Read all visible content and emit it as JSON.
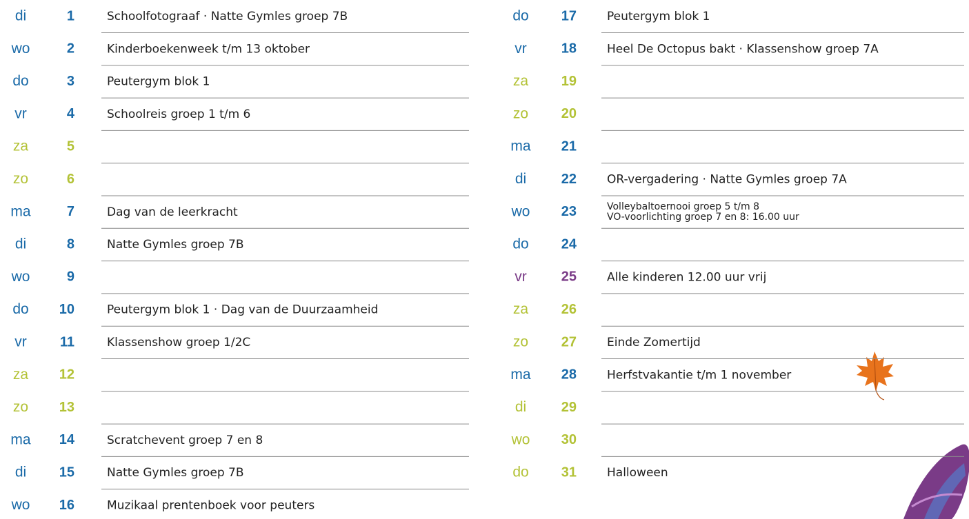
{
  "columns": [
    {
      "rows": [
        {
          "weekday": "di",
          "day": 1,
          "color": "#1a6aa8",
          "event": "Schoolfotograaf · Natte Gymles groep 7B"
        },
        {
          "weekday": "wo",
          "day": 2,
          "color": "#1a6aa8",
          "event": "Kinderboekenweek t/m 13 oktober"
        },
        {
          "weekday": "do",
          "day": 3,
          "color": "#1a6aa8",
          "event": "Peutergym blok 1"
        },
        {
          "weekday": "vr",
          "day": 4,
          "color": "#1a6aa8",
          "event": "Schoolreis groep 1 t/m 6"
        },
        {
          "weekday": "za",
          "day": 5,
          "color": "#b3c236"
        },
        {
          "weekday": "zo",
          "day": 6,
          "color": "#b3c236"
        },
        {
          "weekday": "ma",
          "day": 7,
          "color": "#1a6aa8",
          "event": "Dag van de leerkracht"
        },
        {
          "weekday": "di",
          "day": 8,
          "color": "#1a6aa8",
          "event": "Natte Gymles groep 7B"
        },
        {
          "weekday": "wo",
          "day": 9,
          "color": "#1a6aa8"
        },
        {
          "weekday": "do",
          "day": 10,
          "color": "#1a6aa8",
          "event": "Peutergym blok 1 · Dag van de Duurzaamheid"
        },
        {
          "weekday": "vr",
          "day": 11,
          "color": "#1a6aa8",
          "event": "Klassenshow groep 1/2C"
        },
        {
          "weekday": "za",
          "day": 12,
          "color": "#b3c236"
        },
        {
          "weekday": "zo",
          "day": 13,
          "color": "#b3c236"
        },
        {
          "weekday": "ma",
          "day": 14,
          "color": "#1a6aa8",
          "event": "Scratchevent groep 7 en 8"
        },
        {
          "weekday": "di",
          "day": 15,
          "color": "#1a6aa8",
          "event": "Natte Gymles groep 7B"
        },
        {
          "weekday": "wo",
          "day": 16,
          "color": "#1a6aa8",
          "event": "Muzikaal prentenboek voor peuters"
        }
      ]
    },
    {
      "rows": [
        {
          "weekday": "do",
          "day": 17,
          "color": "#1a6aa8",
          "event": "Peutergym blok 1"
        },
        {
          "weekday": "vr",
          "day": 18,
          "color": "#1a6aa8",
          "event": "Heel De Octopus bakt · Klassenshow groep 7A"
        },
        {
          "weekday": "za",
          "day": 19,
          "color": "#b3c236"
        },
        {
          "weekday": "zo",
          "day": 20,
          "color": "#b3c236"
        },
        {
          "weekday": "ma",
          "day": 21,
          "color": "#1a6aa8"
        },
        {
          "weekday": "di",
          "day": 22,
          "color": "#1a6aa8",
          "event": "OR-vergadering · Natte Gymles groep 7A"
        },
        {
          "weekday": "wo",
          "day": 23,
          "color": "#1a6aa8",
          "event_lines": [
            "Volleybaltoernooi groep 5 t/m 8",
            "VO-voorlichting groep 7 en 8: 16.00 uur"
          ]
        },
        {
          "weekday": "do",
          "day": 24,
          "color": "#1a6aa8"
        },
        {
          "weekday": "vr",
          "day": 25,
          "color": "#7a3b87",
          "event": "Alle kinderen 12.00 uur vrij"
        },
        {
          "weekday": "za",
          "day": 26,
          "color": "#b3c236"
        },
        {
          "weekday": "zo",
          "day": 27,
          "color": "#b3c236",
          "event": "Einde Zomertijd"
        },
        {
          "weekday": "ma",
          "day": 28,
          "color": "#1a6aa8",
          "event": "Herfstvakantie t/m 1 november"
        },
        {
          "weekday": "di",
          "day": 29,
          "color": "#b3c236"
        },
        {
          "weekday": "wo",
          "day": 30,
          "color": "#b3c236"
        },
        {
          "weekday": "do",
          "day": 31,
          "color": "#b3c236",
          "event": "Halloween"
        }
      ]
    }
  ]
}
